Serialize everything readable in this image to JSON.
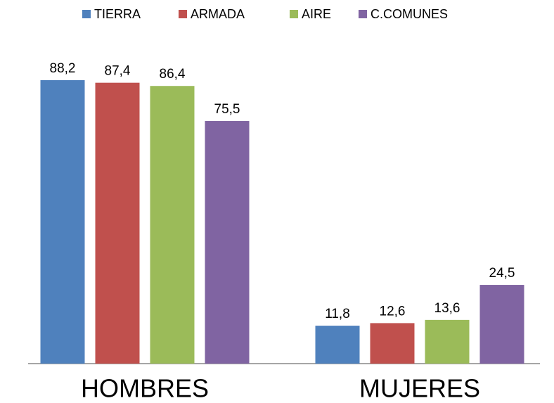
{
  "chart_data": {
    "type": "bar",
    "categories": [
      "HOMBRES",
      "MUJERES"
    ],
    "series": [
      {
        "name": "TIERRA",
        "color": "#4f81bd",
        "values": [
          88.2,
          11.8
        ],
        "value_labels": [
          "88,2",
          "11,8"
        ]
      },
      {
        "name": "ARMADA",
        "color": "#c0504d",
        "values": [
          87.4,
          12.6
        ],
        "value_labels": [
          "87,4",
          "12,6"
        ]
      },
      {
        "name": "AIRE",
        "color": "#9bbb59",
        "values": [
          86.4,
          13.6
        ],
        "value_labels": [
          "86,4",
          "13,6"
        ]
      },
      {
        "name": "C.COMUNES",
        "color": "#8064a2",
        "values": [
          75.5,
          24.5
        ],
        "value_labels": [
          "75,5",
          "24,5"
        ]
      }
    ],
    "legend": "top"
  }
}
